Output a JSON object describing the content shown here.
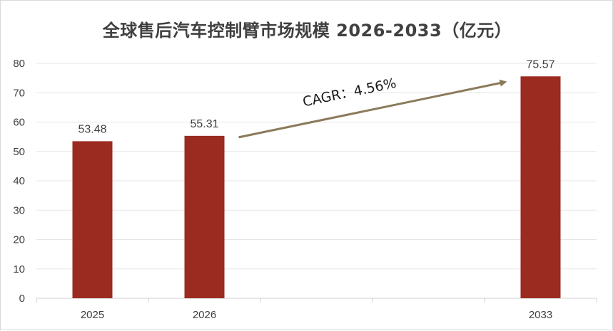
{
  "chart_data": {
    "type": "bar",
    "title": "全球售后汽车控制臂市场规模 2026-2033（亿元）",
    "category_slots": [
      "2025",
      "2026",
      "",
      "",
      "2033"
    ],
    "categories": [
      "2025",
      "2026",
      "2033"
    ],
    "values": [
      53.48,
      55.31,
      75.57
    ],
    "data_labels": [
      "53.48",
      "55.31",
      "75.57"
    ],
    "ylim": [
      0,
      80
    ],
    "yticks": [
      0,
      10,
      20,
      30,
      40,
      50,
      60,
      70,
      80
    ],
    "grid": true,
    "legend": "none",
    "annotation": {
      "text": "CAGR：4.56%",
      "from_category": "2026",
      "to_category": "2033"
    },
    "colors": {
      "bar": "#9b2b20",
      "arrow": "#8b7a5a",
      "grid": "#e6e6e6",
      "axis": "#d0d0d0"
    }
  }
}
